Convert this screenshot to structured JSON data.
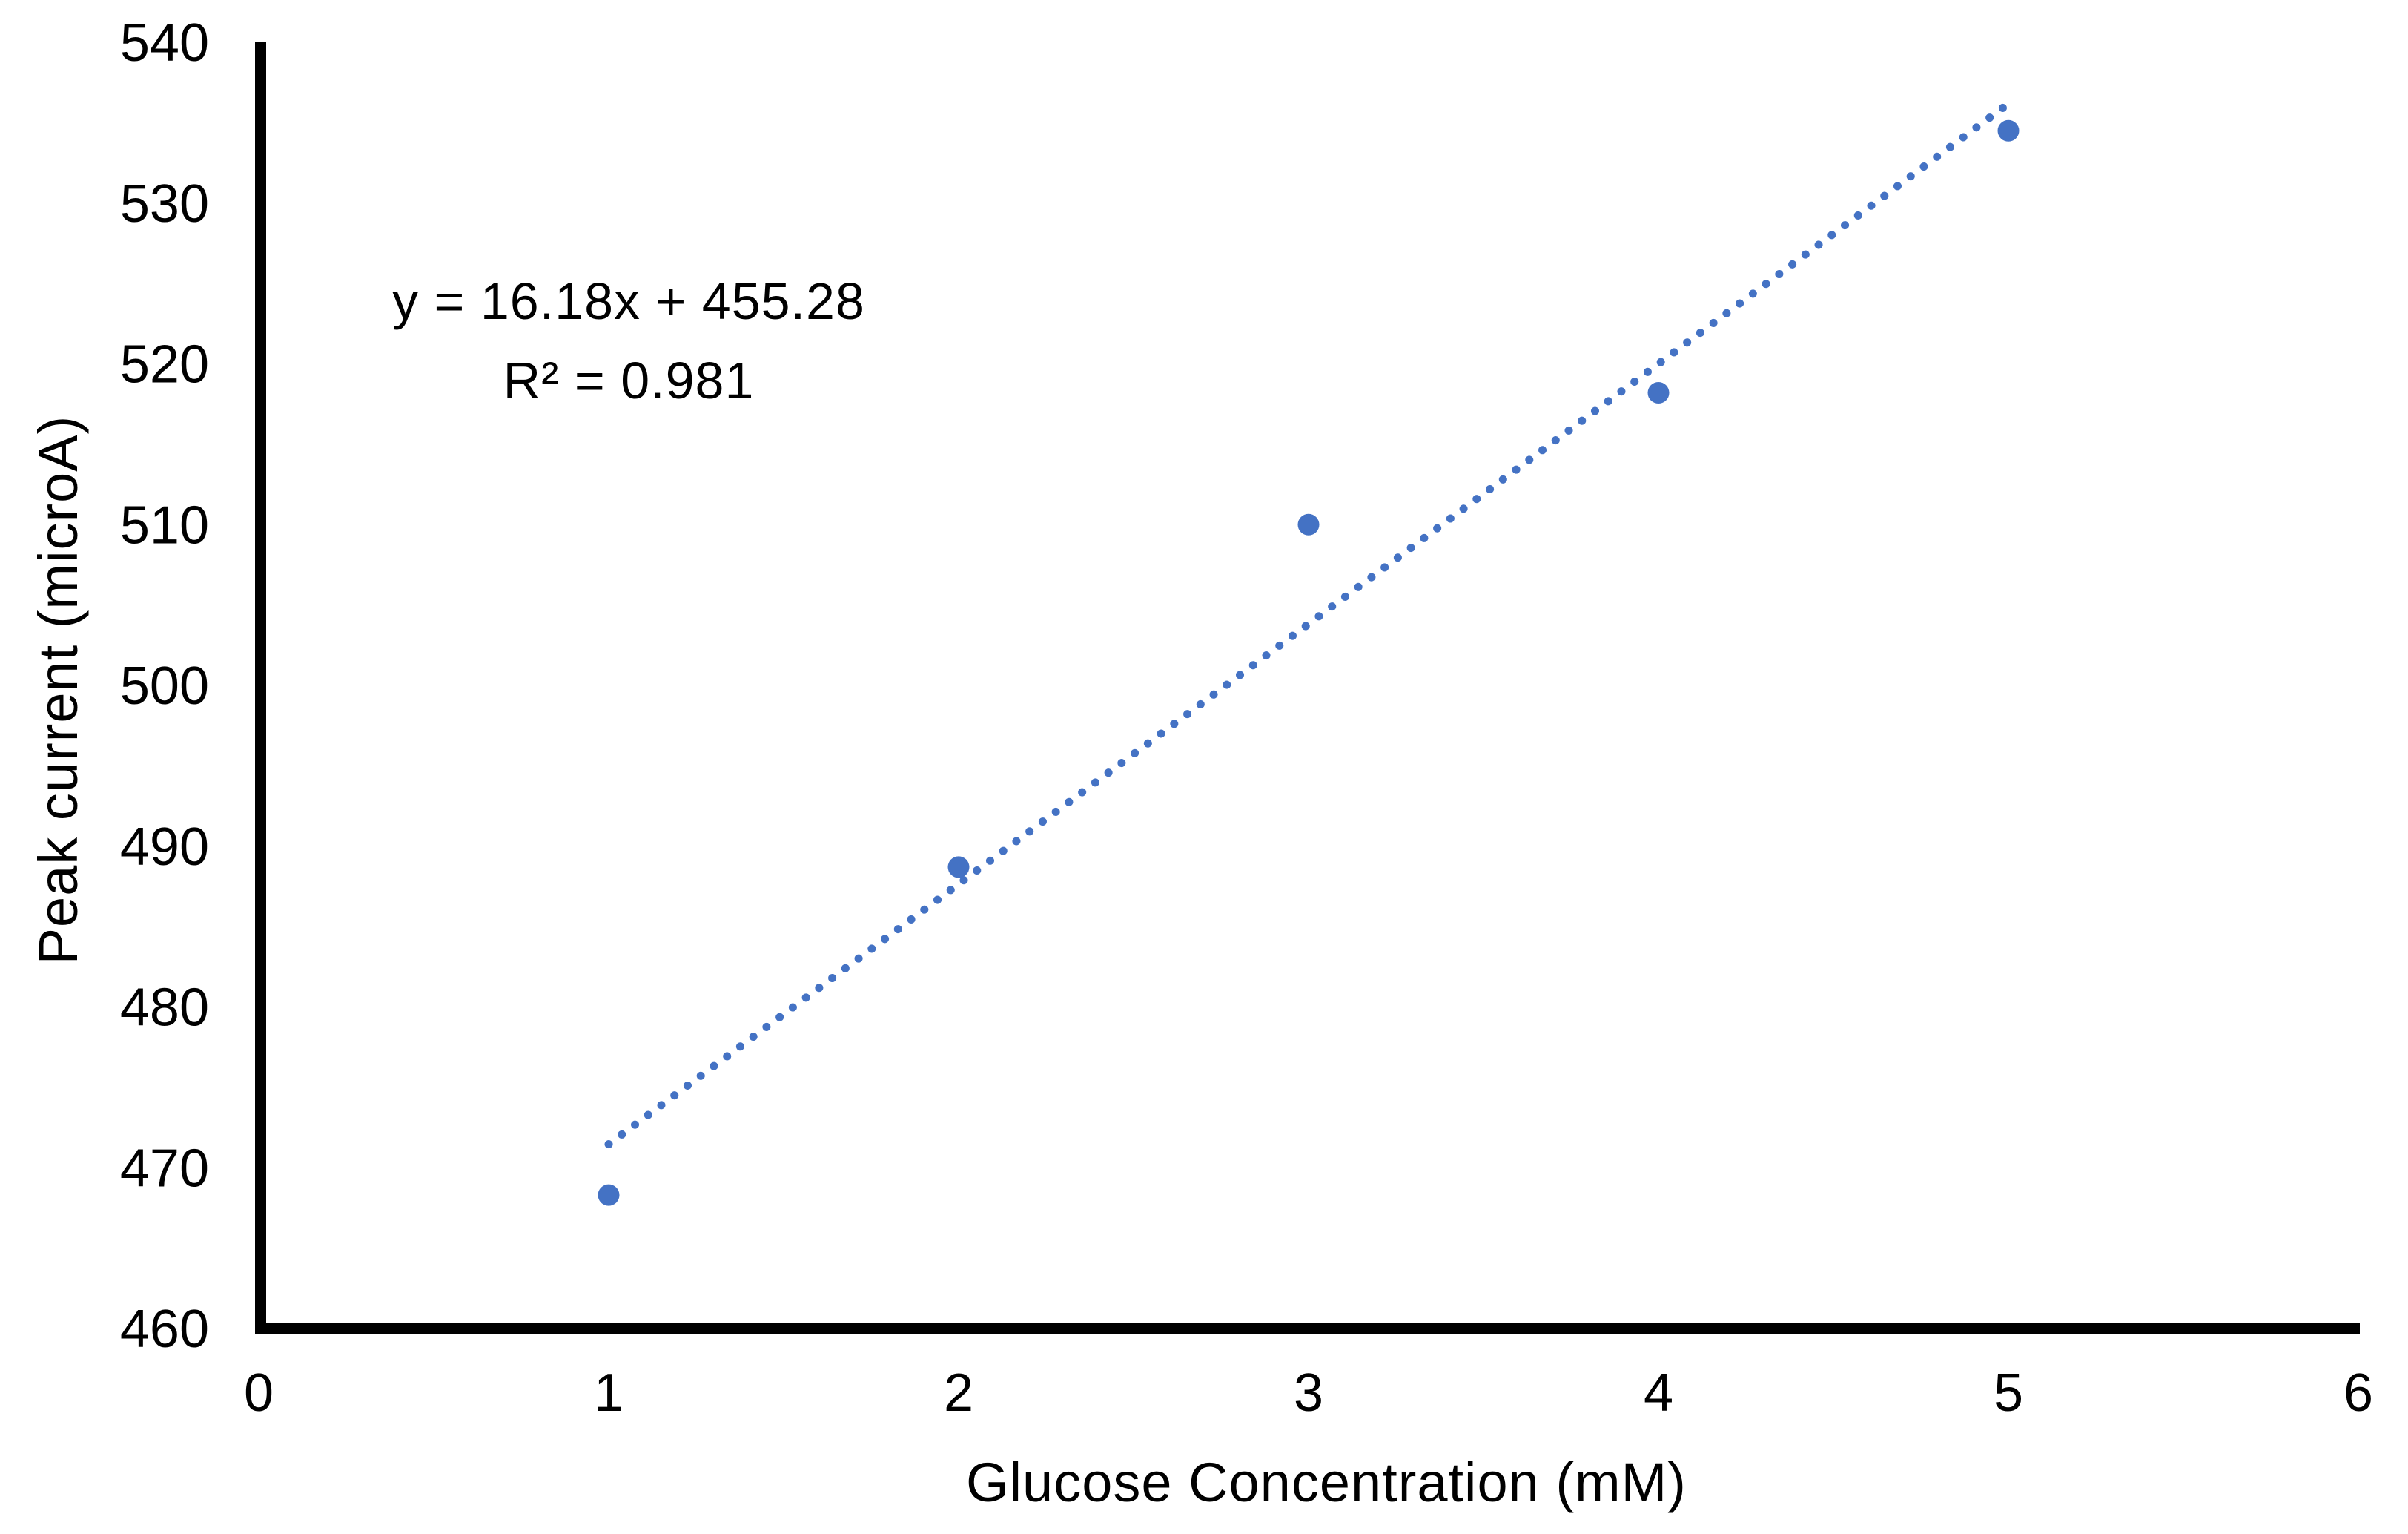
{
  "chart_data": {
    "type": "scatter",
    "title": "",
    "xlabel": "Glucose Concentration (mM)",
    "ylabel": "Peak current (microA)",
    "x": [
      1,
      2,
      3,
      4,
      5
    ],
    "y": [
      468.3,
      488.7,
      510.0,
      518.2,
      534.5
    ],
    "xlim": [
      0,
      6
    ],
    "ylim": [
      460,
      540
    ],
    "x_ticks": [
      0,
      1,
      2,
      3,
      4,
      5,
      6
    ],
    "y_ticks": [
      460,
      470,
      480,
      490,
      500,
      510,
      520,
      530,
      540
    ],
    "grid": false,
    "legend": false,
    "marker_color": "#4472C4",
    "trendline": {
      "style": "dotted",
      "color": "#4472C4",
      "slope": 16.18,
      "intercept": 455.28,
      "x_start": 1.0,
      "x_end": 5.0,
      "equation_label": "y = 16.18x + 455.28",
      "r_squared_label": "R² = 0.981"
    }
  },
  "annotation": {
    "line1": "y = 16.18x + 455.28",
    "line2": "R² = 0.981"
  },
  "axes": {
    "x_title": "Glucose Concentration (mM)",
    "y_title": "Peak current (microA)",
    "axis_color": "#000000"
  }
}
